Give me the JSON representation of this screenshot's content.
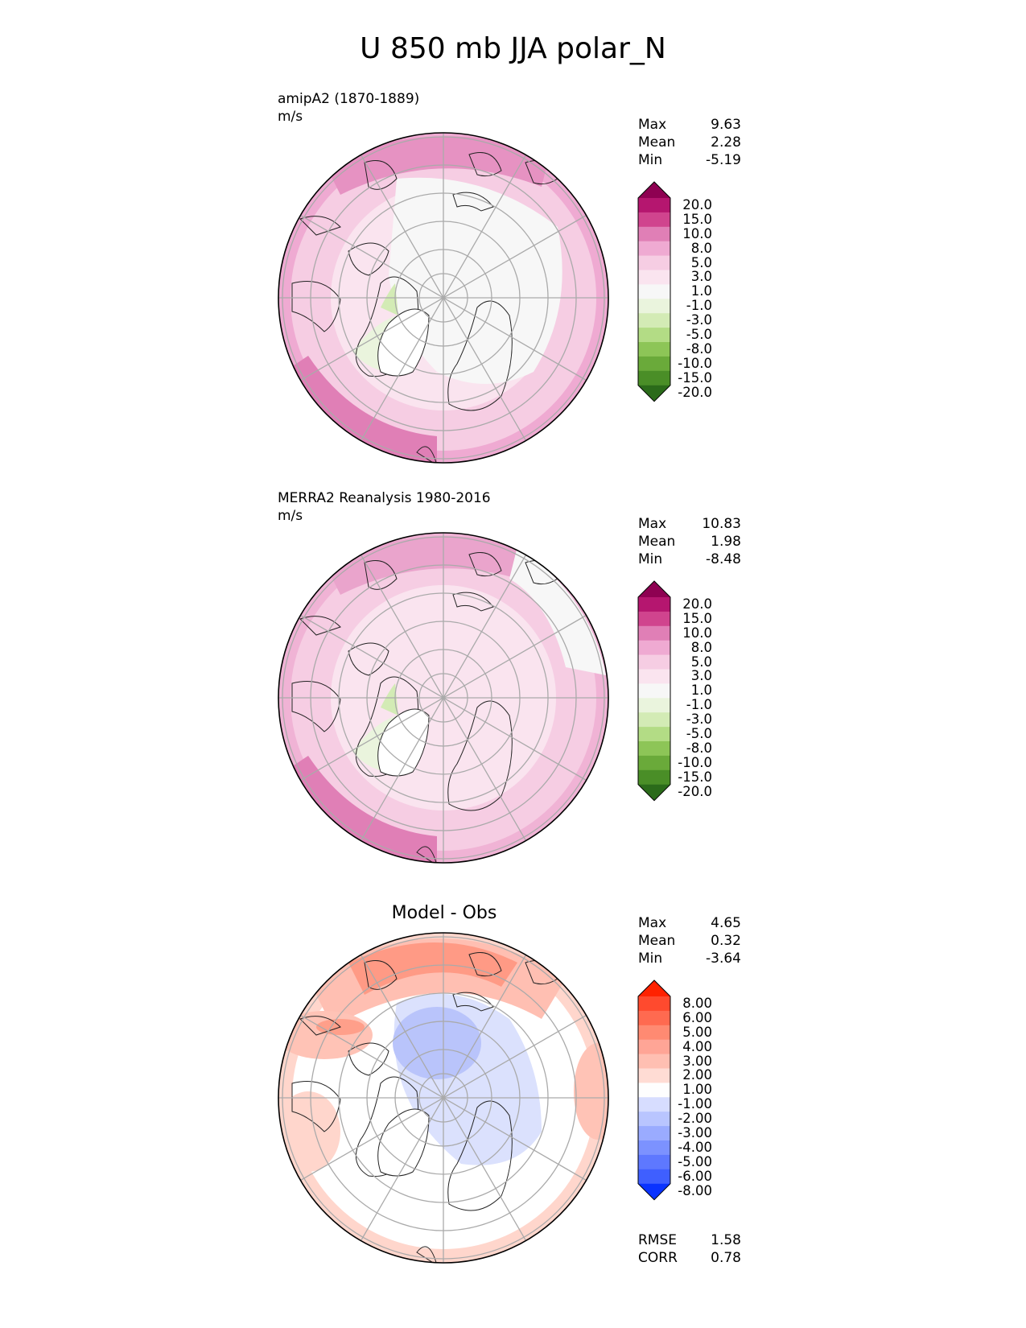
{
  "title": "U 850 mb JJA polar_N",
  "panels": [
    {
      "id": "model",
      "label_line1": "amipA2 (1870-1889)",
      "label_line2": "m/s",
      "stats": {
        "max_label": "Max",
        "max": "9.63",
        "mean_label": "Mean",
        "mean": "2.28",
        "min_label": "Min",
        "min": "-5.19"
      },
      "colorbar_labels": [
        "20.0",
        "15.0",
        "10.0",
        "8.0",
        "5.0",
        "3.0",
        "1.0",
        "-1.0",
        "-3.0",
        "-5.0",
        "-8.0",
        "-10.0",
        "-15.0",
        "-20.0"
      ],
      "colorbar_colors": [
        "#8e0152",
        "#b5166f",
        "#d0448e",
        "#e07fb6",
        "#efaad2",
        "#f6cde3",
        "#fae4ef",
        "#f7f7f7",
        "#eaf4dd",
        "#d3ebb5",
        "#b3dc85",
        "#8dc557",
        "#6aaa3a",
        "#4a8e27",
        "#2b6b1a"
      ]
    },
    {
      "id": "obs",
      "label_line1": "MERRA2 Reanalysis 1980-2016",
      "label_line2": "m/s",
      "stats": {
        "max_label": "Max",
        "max": "10.83",
        "mean_label": "Mean",
        "mean": "1.98",
        "min_label": "Min",
        "min": "-8.48"
      },
      "colorbar_labels": [
        "20.0",
        "15.0",
        "10.0",
        "8.0",
        "5.0",
        "3.0",
        "1.0",
        "-1.0",
        "-3.0",
        "-5.0",
        "-8.0",
        "-10.0",
        "-15.0",
        "-20.0"
      ],
      "colorbar_colors": [
        "#8e0152",
        "#b5166f",
        "#d0448e",
        "#e07fb6",
        "#efaad2",
        "#f6cde3",
        "#fae4ef",
        "#f7f7f7",
        "#eaf4dd",
        "#d3ebb5",
        "#b3dc85",
        "#8dc557",
        "#6aaa3a",
        "#4a8e27",
        "#2b6b1a"
      ]
    },
    {
      "id": "diff",
      "subtitle": "Model - Obs",
      "stats": {
        "max_label": "Max",
        "max": "4.65",
        "mean_label": "Mean",
        "mean": "0.32",
        "min_label": "Min",
        "min": "-3.64"
      },
      "colorbar_labels": [
        "8.00",
        "6.00",
        "5.00",
        "4.00",
        "3.00",
        "2.00",
        "1.00",
        "-1.00",
        "-2.00",
        "-3.00",
        "-4.00",
        "-5.00",
        "-6.00",
        "-8.00"
      ],
      "colorbar_colors": [
        "#ff2200",
        "#ff4a2e",
        "#ff6a50",
        "#ff8a72",
        "#ffa596",
        "#ffbfb2",
        "#ffdcd4",
        "#fefefe",
        "#d7ddff",
        "#b9c5ff",
        "#9aabff",
        "#7c92ff",
        "#5e78ff",
        "#3f5fff",
        "#0a33ff"
      ],
      "rmse_label": "RMSE",
      "rmse": "1.58",
      "corr_label": "CORR",
      "corr": "0.78"
    }
  ]
}
